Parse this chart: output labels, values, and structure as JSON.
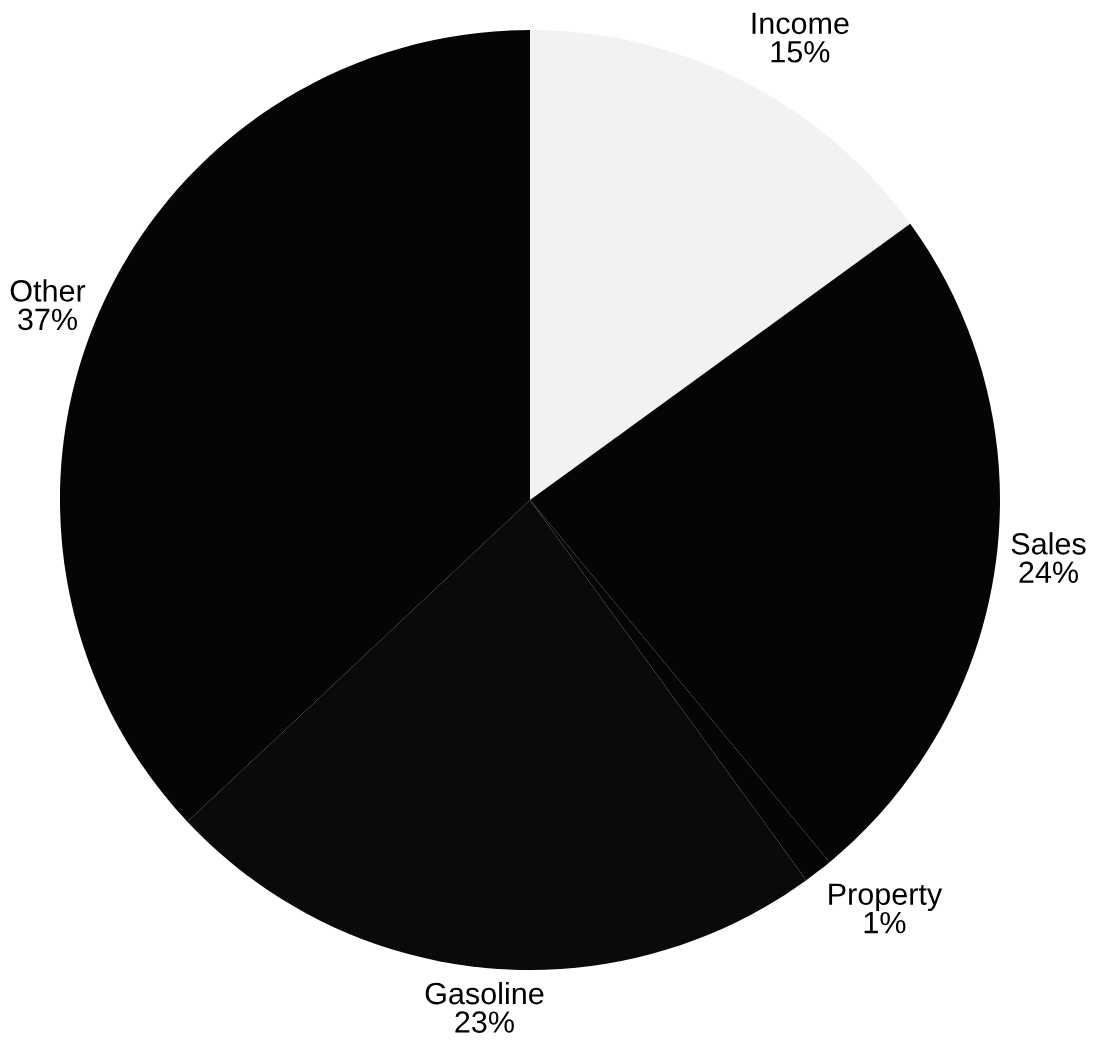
{
  "chart_data": {
    "type": "pie",
    "categories": [
      "Income",
      "Sales",
      "Property",
      "Gasoline",
      "Other"
    ],
    "values": [
      15,
      24,
      1,
      23,
      37
    ],
    "value_labels": [
      "15%",
      "24%",
      "1%",
      "23%",
      "37%"
    ],
    "colors": [
      "#f2f2f2",
      "#050505",
      "#050505",
      "#0a0a0a",
      "#050505"
    ]
  }
}
